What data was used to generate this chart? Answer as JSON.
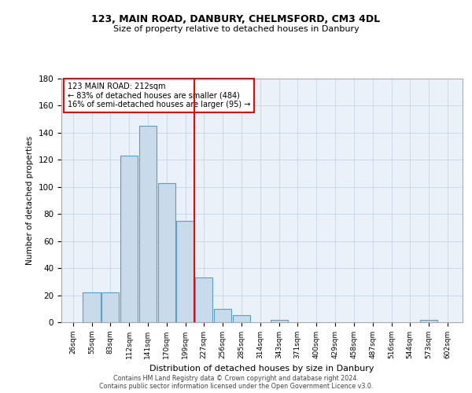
{
  "title1": "123, MAIN ROAD, DANBURY, CHELMSFORD, CM3 4DL",
  "title2": "Size of property relative to detached houses in Danbury",
  "xlabel": "Distribution of detached houses by size in Danbury",
  "ylabel": "Number of detached properties",
  "bar_edges": [
    26,
    55,
    83,
    112,
    141,
    170,
    199,
    227,
    256,
    285,
    314,
    343,
    371,
    400,
    429,
    458,
    487,
    516,
    544,
    573,
    602
  ],
  "bar_heights": [
    0,
    22,
    22,
    123,
    145,
    103,
    75,
    33,
    10,
    5,
    0,
    2,
    0,
    0,
    0,
    0,
    0,
    0,
    0,
    2,
    0
  ],
  "bar_color": "#c9daea",
  "bar_edgecolor": "#5a9fc5",
  "grid_color": "#c5d5e5",
  "bg_color": "#eaf1f8",
  "red_line_x": 212,
  "annotation_line1": "123 MAIN ROAD: 212sqm",
  "annotation_line2": "← 83% of detached houses are smaller (484)",
  "annotation_line3": "16% of semi-detached houses are larger (95) →",
  "annotation_box_color": "white",
  "annotation_box_edgecolor": "red",
  "ylim": [
    0,
    180
  ],
  "yticks": [
    0,
    20,
    40,
    60,
    80,
    100,
    120,
    140,
    160,
    180
  ],
  "footer1": "Contains HM Land Registry data © Crown copyright and database right 2024.",
  "footer2": "Contains public sector information licensed under the Open Government Licence v3.0."
}
